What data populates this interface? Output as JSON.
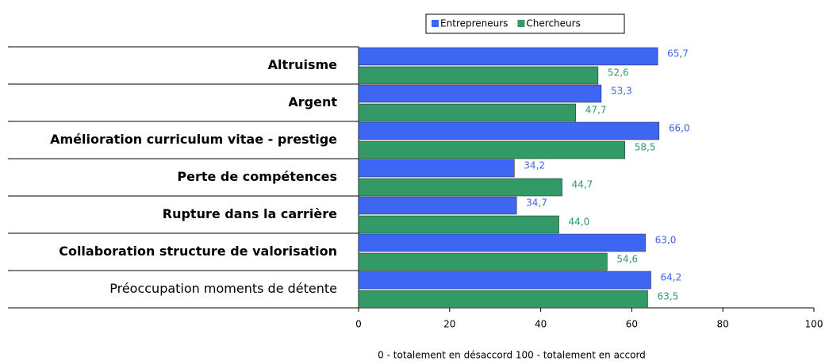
{
  "chart_data": {
    "type": "bar",
    "orientation": "horizontal",
    "x_label": "0 - totalement en désaccord  100 - totalement en accord",
    "categories": [
      "Altruisme",
      "Argent",
      "Amélioration curriculum vitae - prestige",
      "Perte de compétences",
      "Rupture dans la carrière",
      "Collaboration structure de valorisation",
      "Préoccupation moments de détente"
    ],
    "category_bold": [
      true,
      true,
      true,
      true,
      true,
      true,
      false
    ],
    "series": [
      {
        "name": "Entrepreneurs",
        "color": "#3d66f2",
        "values": [
          65.7,
          53.3,
          66.0,
          34.2,
          34.7,
          63.0,
          64.2
        ],
        "value_labels": [
          "65,7",
          "53,3",
          "66,0",
          "34,2",
          "34,7",
          "63,0",
          "64,2"
        ]
      },
      {
        "name": "Chercheurs",
        "color": "#339966",
        "values": [
          52.6,
          47.7,
          58.5,
          44.7,
          44.0,
          54.6,
          63.5
        ],
        "value_labels": [
          "52,6",
          "47,7",
          "58,5",
          "44,7",
          "44,0",
          "54,6",
          "63,5"
        ]
      }
    ],
    "xlim": [
      0,
      100
    ],
    "xticks": [
      0,
      20,
      40,
      60,
      80,
      100
    ],
    "legend": "top"
  }
}
